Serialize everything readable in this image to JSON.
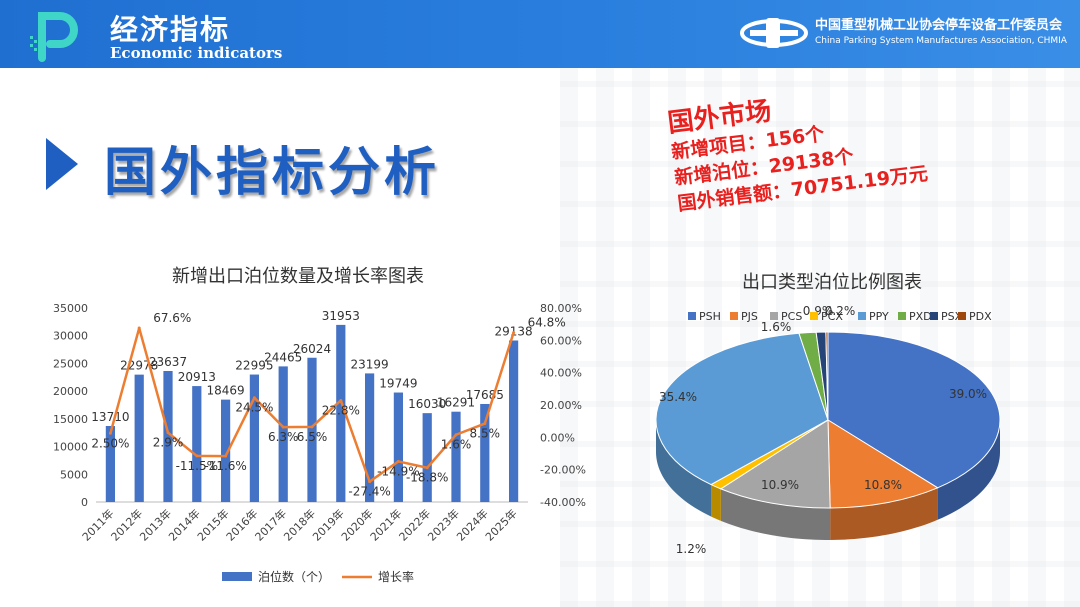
{
  "header": {
    "title_cn": "经济指标",
    "title_en": "Economic indicators",
    "assoc_cn": "中国重型机械工业协会停车设备工作委员会",
    "assoc_en": "China Parking System Manufactures Association, CHMIA"
  },
  "section": {
    "title": "国外指标分析"
  },
  "callout": {
    "title": "国外市场",
    "lines": [
      "新增项目：156个",
      "新增泊位：29138个",
      "国外销售额：70751.19万元"
    ]
  },
  "colors": {
    "header_blue": "#2a7fde",
    "title_blue": "#1f5fc2",
    "callout_red": "#e8201e",
    "bar_blue": "#4472c4",
    "line_orange": "#ed7d31"
  },
  "chart_data": [
    {
      "type": "bar",
      "title": "新增出口泊位数量及增长率图表",
      "categories": [
        "2011年",
        "2012年",
        "2013年",
        "2014年",
        "2015年",
        "2016年",
        "2017年",
        "2018年",
        "2019年",
        "2020年",
        "2021年",
        "2022年",
        "2023年",
        "2024年",
        "2025年"
      ],
      "series": [
        {
          "name": "泊位数（个）",
          "type": "bar",
          "axis": "left",
          "values": [
            13710,
            22978,
            23637,
            20913,
            18469,
            22995,
            24465,
            26024,
            31953,
            23199,
            19749,
            16030,
            16291,
            17685,
            29138
          ],
          "labels": [
            "13710",
            "22978",
            "23637",
            "20913",
            "18469",
            "22995",
            "24465",
            "26024",
            "31953",
            "23199",
            "19749",
            "16030",
            "16291",
            "17685",
            "29138"
          ]
        },
        {
          "name": "增长率",
          "type": "line",
          "axis": "right",
          "values": [
            2.5,
            67.6,
            2.9,
            -11.5,
            -11.6,
            24.5,
            6.3,
            6.5,
            22.8,
            -27.4,
            -14.9,
            -18.8,
            1.6,
            8.5,
            64.8
          ],
          "labels": [
            "2.50%",
            "67.6%",
            "2.9%",
            "-11.5%",
            "-11.6%",
            "24.5%",
            "6.3%",
            "6.5%",
            "22.8%",
            "-27.4%",
            "-14.9%",
            "-18.8%",
            "1.6%",
            "8.5%",
            "64.8%"
          ]
        }
      ],
      "y_left_ticks": [
        "35000",
        "30000",
        "25000",
        "20000",
        "15000",
        "10000",
        "5000",
        "0"
      ],
      "y_right_ticks": [
        "80.00%",
        "60.00%",
        "40.00%",
        "20.00%",
        "0.00%",
        "-20.00%",
        "-40.00%"
      ],
      "ylim_left": [
        0,
        35000
      ],
      "ylim_right": [
        -40,
        80
      ],
      "legend": "bottom"
    },
    {
      "type": "pie",
      "title": "出口类型泊位比例图表",
      "legend": "top",
      "slices": [
        {
          "name": "PSH",
          "value": 39.0,
          "label": "39.0%",
          "color": "#4472c4"
        },
        {
          "name": "PJS",
          "value": 10.8,
          "label": "10.8%",
          "color": "#ed7d31"
        },
        {
          "name": "PCS",
          "value": 10.9,
          "label": "10.9%",
          "color": "#a5a5a5"
        },
        {
          "name": "PCX",
          "value": 1.2,
          "label": "1.2%",
          "color": "#ffc000"
        },
        {
          "name": "PPY",
          "value": 35.4,
          "label": "35.4%",
          "color": "#5b9bd5"
        },
        {
          "name": "PXD",
          "value": 1.6,
          "label": "1.6%",
          "color": "#70ad47"
        },
        {
          "name": "PSX",
          "value": 0.9,
          "label": "0.9%",
          "color": "#264478"
        },
        {
          "name": "PDX",
          "value": 0.2,
          "label": "0.2%",
          "color": "#9e480e"
        }
      ]
    }
  ]
}
